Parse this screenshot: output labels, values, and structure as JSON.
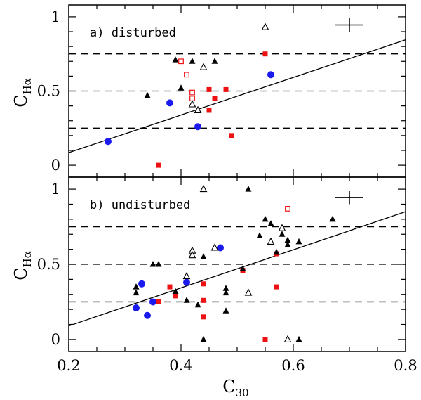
{
  "chart_data": {
    "type": "scatter",
    "xlabel_main": "C",
    "xlabel_sub": "30",
    "ylabel_main": "C",
    "ylabel_sub": "Hα",
    "xlim": [
      0.2,
      0.8
    ],
    "ylim": [
      -0.08,
      1.08
    ],
    "x_ticks": [
      0.2,
      0.4,
      0.6,
      0.8
    ],
    "x_tick_labels": [
      "0.2",
      "0.4",
      "0.6",
      "0.8"
    ],
    "y_ticks": [
      0,
      0.5,
      1
    ],
    "y_tick_labels": [
      "0",
      "0.5",
      "1"
    ],
    "marker_colors": {
      "filled_square": "#ee1111",
      "open_square": "#ee1111",
      "circle": "#1a1aee",
      "filled_triangle": "#000000",
      "open_triangle": "#000000"
    },
    "panels": [
      {
        "label": "a) disturbed",
        "hlines": [
          0.25,
          0.5,
          0.75
        ],
        "fit_line": {
          "x1": 0.2,
          "y1": 0.085,
          "x2": 0.8,
          "y2": 0.845
        },
        "error_cross": {
          "x": 0.7,
          "y": 0.945,
          "dx": 0.025,
          "dy": 0.045
        },
        "series": [
          {
            "name": "filled_square",
            "x": [
              0.36,
              0.45,
              0.46,
              0.48,
              0.45,
              0.49,
              0.55
            ],
            "y": [
              0.0,
              0.51,
              0.45,
              0.51,
              0.37,
              0.2,
              0.75
            ]
          },
          {
            "name": "open_square",
            "x": [
              0.4,
              0.41,
              0.42,
              0.42
            ],
            "y": [
              0.7,
              0.61,
              0.49,
              0.45
            ]
          },
          {
            "name": "circle",
            "x": [
              0.27,
              0.38,
              0.43,
              0.56
            ],
            "y": [
              0.16,
              0.42,
              0.26,
              0.61
            ]
          },
          {
            "name": "filled_triangle",
            "x": [
              0.34,
              0.39,
              0.4,
              0.42,
              0.46
            ],
            "y": [
              0.47,
              0.71,
              0.52,
              0.7,
              0.7
            ]
          },
          {
            "name": "open_triangle",
            "x": [
              0.42,
              0.43,
              0.44,
              0.55
            ],
            "y": [
              0.41,
              0.37,
              0.66,
              0.93
            ]
          }
        ]
      },
      {
        "label": "b) undisturbed",
        "hlines": [
          0.25,
          0.5,
          0.75
        ],
        "fit_line": {
          "x1": 0.2,
          "y1": 0.09,
          "x2": 0.8,
          "y2": 0.85
        },
        "error_cross": {
          "x": 0.7,
          "y": 0.945,
          "dx": 0.025,
          "dy": 0.045
        },
        "series": [
          {
            "name": "filled_square",
            "x": [
              0.36,
              0.38,
              0.39,
              0.44,
              0.44,
              0.44,
              0.51,
              0.55,
              0.57,
              0.57
            ],
            "y": [
              0.25,
              0.35,
              0.29,
              0.37,
              0.26,
              0.15,
              0.46,
              0.0,
              0.35,
              0.57
            ]
          },
          {
            "name": "open_square",
            "x": [
              0.59
            ],
            "y": [
              0.87
            ]
          },
          {
            "name": "circle",
            "x": [
              0.32,
              0.33,
              0.34,
              0.35,
              0.41,
              0.47
            ],
            "y": [
              0.21,
              0.37,
              0.16,
              0.25,
              0.38,
              0.61
            ]
          },
          {
            "name": "filled_triangle",
            "x": [
              0.32,
              0.32,
              0.35,
              0.36,
              0.39,
              0.41,
              0.43,
              0.44,
              0.44,
              0.48,
              0.48,
              0.48,
              0.51,
              0.52,
              0.54,
              0.55,
              0.56,
              0.57,
              0.58,
              0.59,
              0.59,
              0.61,
              0.61,
              0.67
            ],
            "y": [
              0.35,
              0.31,
              0.5,
              0.5,
              0.32,
              0.26,
              0.23,
              0.55,
              0.0,
              0.34,
              0.31,
              0.19,
              0.47,
              1.0,
              0.69,
              0.8,
              0.77,
              0.58,
              0.7,
              0.66,
              0.63,
              0.65,
              0.0,
              0.8
            ]
          },
          {
            "name": "open_triangle",
            "x": [
              0.41,
              0.42,
              0.42,
              0.44,
              0.46,
              0.52,
              0.56,
              0.58,
              0.59
            ],
            "y": [
              0.42,
              0.59,
              0.56,
              1.0,
              0.61,
              0.31,
              0.65,
              0.74,
              0.0
            ]
          }
        ]
      }
    ]
  }
}
